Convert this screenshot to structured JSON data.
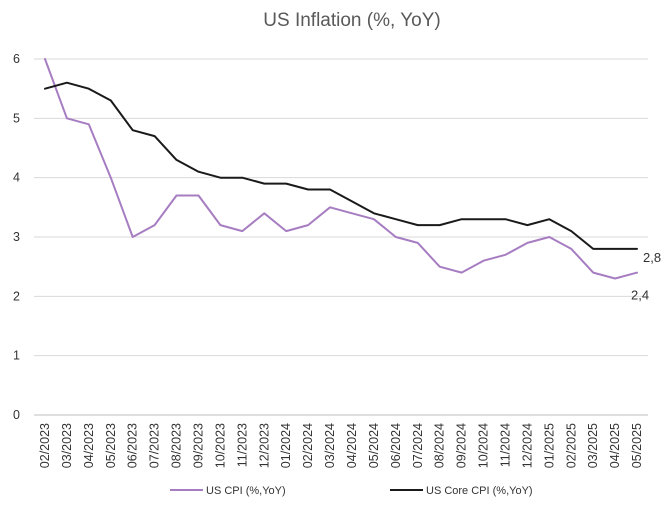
{
  "chart_data": {
    "type": "line",
    "title": "US Inflation (%, YoY)",
    "categories": [
      "02/2023",
      "03/2023",
      "04/2023",
      "05/2023",
      "06/2023",
      "07/2023",
      "08/2023",
      "09/2023",
      "10/2023",
      "11/2023",
      "12/2023",
      "01/2024",
      "02/2024",
      "03/2024",
      "04/2024",
      "05/2024",
      "06/2024",
      "07/2024",
      "08/2024",
      "09/2024",
      "10/2024",
      "11/2024",
      "12/2024",
      "01/2025",
      "02/2025",
      "03/2025",
      "04/2025",
      "05/2025"
    ],
    "series": [
      {
        "name": "US CPI (%,YoY)",
        "color": "#a77dc2",
        "values": [
          6.0,
          5.0,
          4.9,
          4.0,
          3.0,
          3.2,
          3.7,
          3.7,
          3.2,
          3.1,
          3.4,
          3.1,
          3.2,
          3.5,
          3.4,
          3.3,
          3.0,
          2.9,
          2.5,
          2.4,
          2.6,
          2.7,
          2.9,
          3.0,
          2.8,
          2.4,
          2.3,
          2.4
        ],
        "end_label": "2,4"
      },
      {
        "name": "US Core CPI (%,YoY)",
        "color": "#1a1a1a",
        "values": [
          5.5,
          5.6,
          5.5,
          5.3,
          4.8,
          4.7,
          4.3,
          4.1,
          4.0,
          4.0,
          3.9,
          3.9,
          3.8,
          3.8,
          3.6,
          3.4,
          3.3,
          3.2,
          3.2,
          3.3,
          3.3,
          3.3,
          3.2,
          3.3,
          3.1,
          2.8,
          2.8,
          2.8
        ],
        "end_label": "2,8"
      }
    ],
    "ylim": [
      0,
      6
    ],
    "yticks": [
      "0",
      "1",
      "2",
      "3",
      "4",
      "5",
      "6"
    ],
    "grid": true,
    "legend_position": "bottom"
  }
}
